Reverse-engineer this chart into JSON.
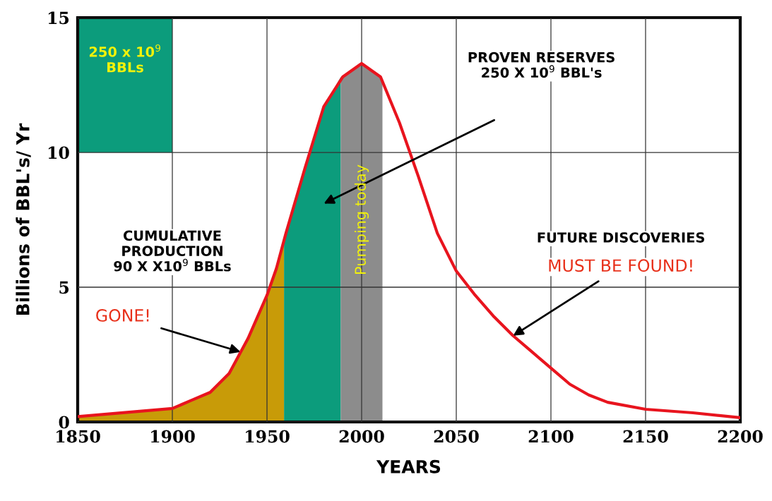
{
  "chart_data": {
    "type": "line",
    "xlabel": "YEARS",
    "ylabel": "Billions of BBL's/ Yr",
    "xlim": [
      1850,
      2200
    ],
    "xticks": [
      1850,
      1900,
      1950,
      2000,
      2050,
      2100,
      2150,
      2200
    ],
    "ylim": [
      0,
      15
    ],
    "yticks": [
      0,
      5,
      10,
      15
    ],
    "grid": true,
    "series": [
      {
        "type": "area",
        "color": "#c89b08",
        "x": [
          1850,
          1875,
          1900,
          1910,
          1920,
          1930,
          1940,
          1950,
          1959
        ],
        "values": [
          0.2,
          0.35,
          0.5,
          0.8,
          1.1,
          1.8,
          3.1,
          4.7,
          6.7
        ]
      },
      {
        "type": "area",
        "color": "#0c9c7c",
        "x": [
          1959,
          1970,
          1980,
          1989
        ],
        "values": [
          6.7,
          9.4,
          11.7,
          12.8
        ]
      },
      {
        "type": "area",
        "color": "#8c8c8c",
        "x": [
          1989,
          2000,
          2011
        ],
        "values": [
          12.8,
          13.3,
          12.7
        ]
      },
      {
        "color": "#e8141e",
        "x": [
          1850,
          1875,
          1900,
          1910,
          1920,
          1930,
          1940,
          1950,
          1955,
          1960,
          1970,
          1980,
          1990,
          2000,
          2010,
          2020,
          2030,
          2040,
          2050,
          2060,
          2070,
          2080,
          2090,
          2100,
          2110,
          2120,
          2130,
          2150,
          2175,
          2200
        ],
        "values": [
          0.2,
          0.35,
          0.5,
          0.8,
          1.1,
          1.8,
          3.1,
          4.7,
          5.7,
          7.0,
          9.4,
          11.7,
          12.8,
          13.3,
          12.8,
          11.1,
          9.1,
          7.0,
          5.6,
          4.7,
          3.9,
          3.2,
          2.6,
          2.0,
          1.4,
          1.0,
          0.73,
          0.47,
          0.34,
          0.16
        ]
      }
    ],
    "annotations": [
      "PROVEN RESERVES\n250 X 10$^{9}$ BBL's",
      "250 x 10$^{9}$\nBBLs",
      "CUMULATIVE\nPRODUCTION\n90 X X10$^{9}$ BBLs",
      {
        "text": "GONE!",
        "x": 1936,
        "y": 2.6
      },
      "FUTURE DISCOVERIES",
      {
        "text": "MUST BE FOUND!",
        "x": 2080,
        "y": 3.2
      },
      "Pumping today"
    ]
  }
}
